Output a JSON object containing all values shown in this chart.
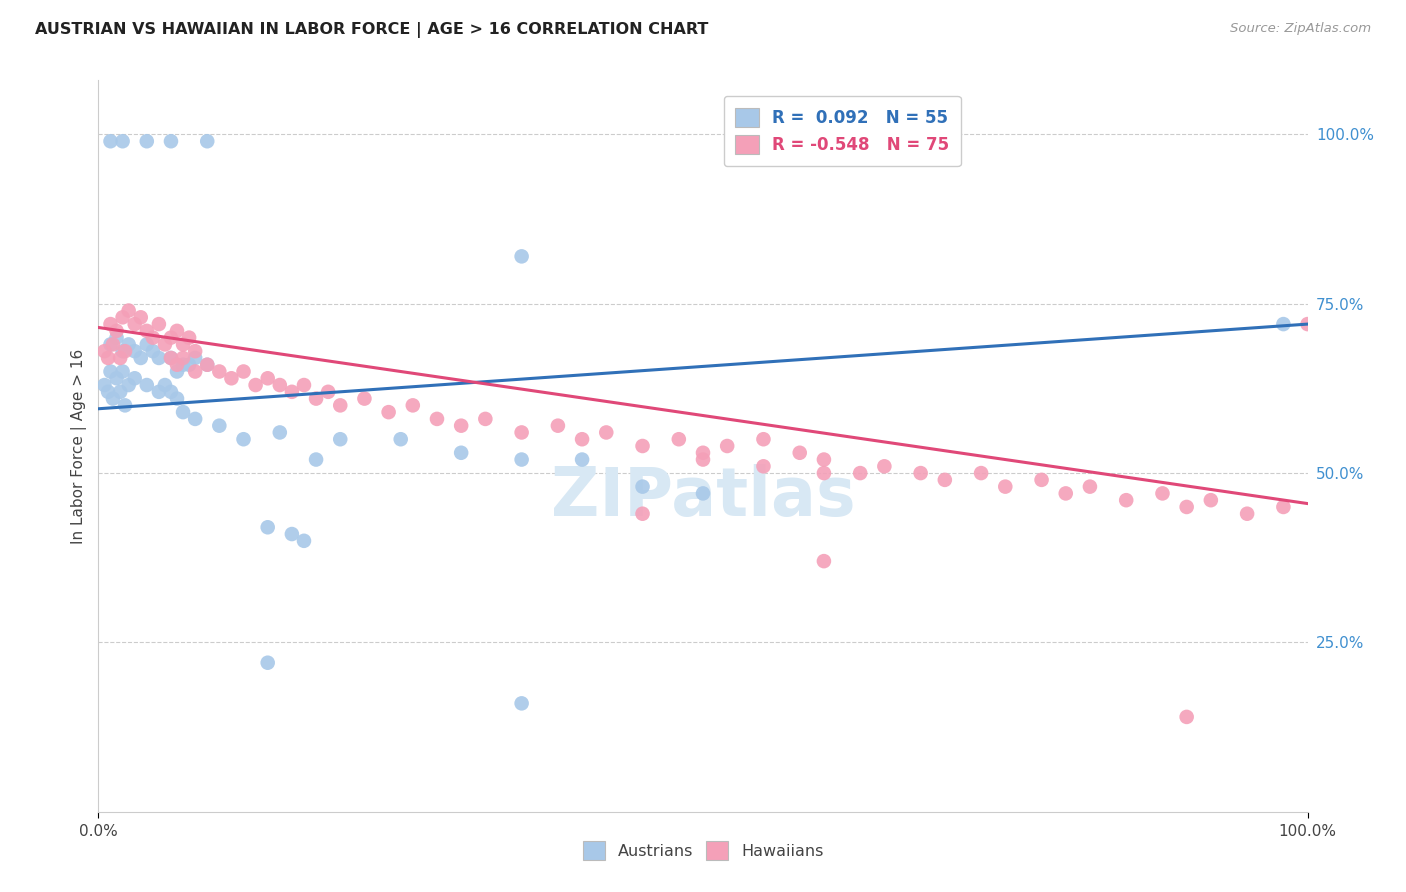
{
  "title": "AUSTRIAN VS HAWAIIAN IN LABOR FORCE | AGE > 16 CORRELATION CHART",
  "source": "Source: ZipAtlas.com",
  "ylabel": "In Labor Force | Age > 16",
  "legend_r_blue": "R =  0.092",
  "legend_n_blue": "N = 55",
  "legend_r_pink": "R = -0.548",
  "legend_n_pink": "N = 75",
  "blue_color": "#A8C8E8",
  "pink_color": "#F4A0B8",
  "blue_line_color": "#3070B8",
  "pink_line_color": "#E04878",
  "grid_color": "#CCCCCC",
  "watermark_color": "#D8E8F4",
  "background_color": "#FFFFFF",
  "text_color": "#444444",
  "right_tick_color": "#4090D0",
  "blue_scatter": [
    [
      0.01,
      0.99
    ],
    [
      0.02,
      0.99
    ],
    [
      0.04,
      0.99
    ],
    [
      0.06,
      0.99
    ],
    [
      0.09,
      0.99
    ],
    [
      0.01,
      0.69
    ],
    [
      0.015,
      0.7
    ],
    [
      0.02,
      0.68
    ],
    [
      0.025,
      0.69
    ],
    [
      0.03,
      0.68
    ],
    [
      0.035,
      0.67
    ],
    [
      0.04,
      0.69
    ],
    [
      0.045,
      0.68
    ],
    [
      0.05,
      0.67
    ],
    [
      0.06,
      0.67
    ],
    [
      0.065,
      0.65
    ],
    [
      0.07,
      0.66
    ],
    [
      0.075,
      0.66
    ],
    [
      0.08,
      0.67
    ],
    [
      0.09,
      0.66
    ],
    [
      0.01,
      0.65
    ],
    [
      0.015,
      0.64
    ],
    [
      0.02,
      0.65
    ],
    [
      0.025,
      0.63
    ],
    [
      0.03,
      0.64
    ],
    [
      0.04,
      0.63
    ],
    [
      0.05,
      0.62
    ],
    [
      0.055,
      0.63
    ],
    [
      0.06,
      0.62
    ],
    [
      0.065,
      0.61
    ],
    [
      0.005,
      0.63
    ],
    [
      0.008,
      0.62
    ],
    [
      0.012,
      0.61
    ],
    [
      0.018,
      0.62
    ],
    [
      0.022,
      0.6
    ],
    [
      0.07,
      0.59
    ],
    [
      0.08,
      0.58
    ],
    [
      0.1,
      0.57
    ],
    [
      0.12,
      0.55
    ],
    [
      0.15,
      0.56
    ],
    [
      0.18,
      0.52
    ],
    [
      0.2,
      0.55
    ],
    [
      0.25,
      0.55
    ],
    [
      0.3,
      0.53
    ],
    [
      0.35,
      0.52
    ],
    [
      0.4,
      0.52
    ],
    [
      0.45,
      0.48
    ],
    [
      0.5,
      0.47
    ],
    [
      0.14,
      0.42
    ],
    [
      0.16,
      0.41
    ],
    [
      0.17,
      0.4
    ],
    [
      0.14,
      0.22
    ],
    [
      0.35,
      0.16
    ],
    [
      0.98,
      0.72
    ],
    [
      0.35,
      0.82
    ]
  ],
  "pink_scatter": [
    [
      0.01,
      0.72
    ],
    [
      0.015,
      0.71
    ],
    [
      0.02,
      0.73
    ],
    [
      0.025,
      0.74
    ],
    [
      0.03,
      0.72
    ],
    [
      0.035,
      0.73
    ],
    [
      0.04,
      0.71
    ],
    [
      0.045,
      0.7
    ],
    [
      0.05,
      0.72
    ],
    [
      0.055,
      0.69
    ],
    [
      0.06,
      0.7
    ],
    [
      0.065,
      0.71
    ],
    [
      0.07,
      0.69
    ],
    [
      0.075,
      0.7
    ],
    [
      0.08,
      0.68
    ],
    [
      0.005,
      0.68
    ],
    [
      0.008,
      0.67
    ],
    [
      0.012,
      0.69
    ],
    [
      0.018,
      0.67
    ],
    [
      0.022,
      0.68
    ],
    [
      0.06,
      0.67
    ],
    [
      0.065,
      0.66
    ],
    [
      0.07,
      0.67
    ],
    [
      0.08,
      0.65
    ],
    [
      0.09,
      0.66
    ],
    [
      0.1,
      0.65
    ],
    [
      0.11,
      0.64
    ],
    [
      0.12,
      0.65
    ],
    [
      0.13,
      0.63
    ],
    [
      0.14,
      0.64
    ],
    [
      0.15,
      0.63
    ],
    [
      0.16,
      0.62
    ],
    [
      0.17,
      0.63
    ],
    [
      0.18,
      0.61
    ],
    [
      0.19,
      0.62
    ],
    [
      0.2,
      0.6
    ],
    [
      0.22,
      0.61
    ],
    [
      0.24,
      0.59
    ],
    [
      0.26,
      0.6
    ],
    [
      0.28,
      0.58
    ],
    [
      0.3,
      0.57
    ],
    [
      0.32,
      0.58
    ],
    [
      0.35,
      0.56
    ],
    [
      0.38,
      0.57
    ],
    [
      0.4,
      0.55
    ],
    [
      0.42,
      0.56
    ],
    [
      0.45,
      0.54
    ],
    [
      0.48,
      0.55
    ],
    [
      0.5,
      0.53
    ],
    [
      0.52,
      0.54
    ],
    [
      0.55,
      0.55
    ],
    [
      0.58,
      0.53
    ],
    [
      0.6,
      0.52
    ],
    [
      0.63,
      0.5
    ],
    [
      0.65,
      0.51
    ],
    [
      0.68,
      0.5
    ],
    [
      0.7,
      0.49
    ],
    [
      0.73,
      0.5
    ],
    [
      0.75,
      0.48
    ],
    [
      0.78,
      0.49
    ],
    [
      0.8,
      0.47
    ],
    [
      0.82,
      0.48
    ],
    [
      0.85,
      0.46
    ],
    [
      0.88,
      0.47
    ],
    [
      0.9,
      0.45
    ],
    [
      0.92,
      0.46
    ],
    [
      0.95,
      0.44
    ],
    [
      0.98,
      0.45
    ],
    [
      1.0,
      0.72
    ],
    [
      0.6,
      0.37
    ],
    [
      0.9,
      0.14
    ],
    [
      0.45,
      0.44
    ],
    [
      0.5,
      0.52
    ],
    [
      0.55,
      0.51
    ],
    [
      0.6,
      0.5
    ]
  ],
  "blue_line": {
    "x0": 0.0,
    "y0": 0.595,
    "x1": 1.0,
    "y1": 0.72
  },
  "pink_line": {
    "x0": 0.0,
    "y0": 0.715,
    "x1": 1.0,
    "y1": 0.455
  },
  "ylim": [
    0.0,
    1.08
  ],
  "xlim": [
    0.0,
    1.0
  ]
}
